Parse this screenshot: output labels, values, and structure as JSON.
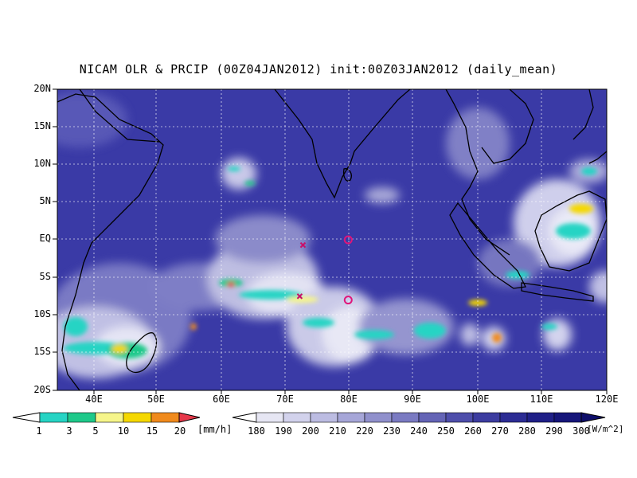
{
  "title": "NICAM OLR & PRCIP (00Z04JAN2012) init:00Z03JAN2012 (daily_mean)",
  "lat_labels": [
    "20N",
    "15N",
    "10N",
    "5N",
    "EQ",
    "5S",
    "10S",
    "15S",
    "20S"
  ],
  "lon_labels": [
    "40E",
    "50E",
    "60E",
    "70E",
    "80E",
    "90E",
    "100E",
    "110E",
    "120E"
  ],
  "precip_colorbar": {
    "labels": [
      "1",
      "3",
      "5",
      "10",
      "15",
      "20"
    ],
    "unit": "[mm/h]",
    "colors": [
      "#ffffff",
      "#26d4c4",
      "#1ec98a",
      "#f6f58a",
      "#f5d800",
      "#f08a1c",
      "#e6384a"
    ]
  },
  "olr_colorbar": {
    "labels": [
      "180",
      "190",
      "200",
      "210",
      "220",
      "230",
      "240",
      "250",
      "260",
      "270",
      "280",
      "290",
      "300"
    ],
    "unit": "[W/m^2]",
    "colors": [
      "#ffffff",
      "#e6e6f3",
      "#d2d2ec",
      "#bcbce2",
      "#a6a6d8",
      "#9090cc",
      "#7a7ac2",
      "#6464b6",
      "#4e4eab",
      "#3c3ca0",
      "#2c2c94",
      "#202088",
      "#16167a",
      "#0e0e6a"
    ]
  },
  "background_color": "#3a3aa6",
  "markers": [
    {
      "type": "circle",
      "lon": 80,
      "lat": 0,
      "color": "#e0157a"
    },
    {
      "type": "circle",
      "lon": 80,
      "lat": -8,
      "color": "#e0157a"
    },
    {
      "type": "cross",
      "lon": 73,
      "lat": -0.7,
      "color": "#c8106a"
    },
    {
      "type": "cross",
      "lon": 72.5,
      "lat": -7.5,
      "color": "#c8106a"
    }
  ]
}
